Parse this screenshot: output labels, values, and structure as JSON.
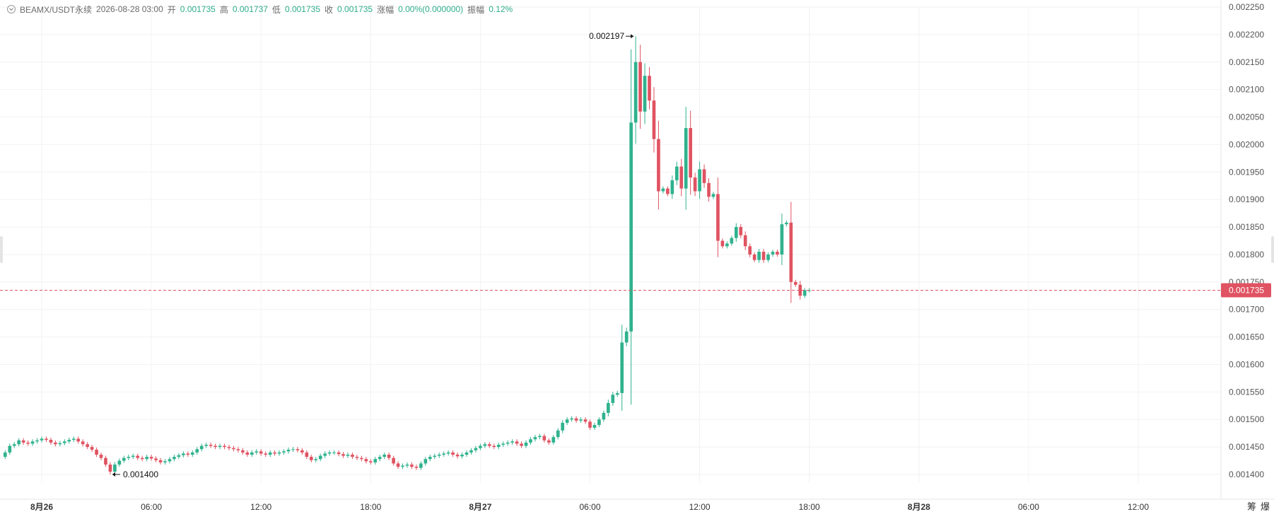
{
  "header": {
    "symbol": "BEAMX/USDT永续",
    "datetime": "2026-08-28 03:00",
    "open_label": "开",
    "open": "0.001735",
    "high_label": "高",
    "high": "0.001737",
    "low_label": "低",
    "low": "0.001735",
    "close_label": "收",
    "close": "0.001735",
    "change_label": "涨幅",
    "change": "0.00%(0.000000)",
    "amplitude_label": "振幅",
    "amplitude": "0.12%"
  },
  "corner": {
    "btn1": "筹",
    "btn2": "爆"
  },
  "colors": {
    "up": "#2fb28d",
    "down": "#e05362",
    "grid": "#f2f2f2",
    "axis_text": "#555555",
    "price_tag": "#e05362"
  },
  "chart_data": {
    "type": "candlestick",
    "title": "",
    "y_range": [
      0.00137,
      0.002255
    ],
    "y_ticks": [
      "0.002250",
      "0.002200",
      "0.002150",
      "0.002100",
      "0.002050",
      "0.002000",
      "0.001950",
      "0.001900",
      "0.001850",
      "0.001800",
      "0.001750",
      "0.001700",
      "0.001650",
      "0.001600",
      "0.001550",
      "0.001500",
      "0.001450",
      "0.001400"
    ],
    "x_ticks": [
      {
        "label": "8月26",
        "t": 0,
        "bold": true
      },
      {
        "label": "06:00",
        "t": 6,
        "bold": false
      },
      {
        "label": "12:00",
        "t": 12,
        "bold": false
      },
      {
        "label": "18:00",
        "t": 18,
        "bold": false
      },
      {
        "label": "8月27",
        "t": 24,
        "bold": true
      },
      {
        "label": "06:00",
        "t": 30,
        "bold": false
      },
      {
        "label": "12:00",
        "t": 36,
        "bold": false
      },
      {
        "label": "18:00",
        "t": 42,
        "bold": false
      },
      {
        "label": "8月28",
        "t": 48,
        "bold": true
      },
      {
        "label": "06:00",
        "t": 54,
        "bold": false
      },
      {
        "label": "12:00",
        "t": 60,
        "bold": false
      }
    ],
    "last_price": "0.001735",
    "last_price_value": 0.001735,
    "annotations": [
      {
        "text": "0.002197",
        "value": 0.002197,
        "side": "left"
      },
      {
        "text": "0.001400",
        "value": 0.0014,
        "side": "right"
      }
    ],
    "candle_interval_hours": 0.25,
    "first_candle_t": -2.0,
    "close_path": [
      0.00144,
      0.001452,
      0.001455,
      0.001462,
      0.001458,
      0.001456,
      0.00146,
      0.001462,
      0.001465,
      0.001463,
      0.001458,
      0.001455,
      0.001457,
      0.00146,
      0.001463,
      0.001465,
      0.00146,
      0.001455,
      0.00145,
      0.001445,
      0.001436,
      0.00143,
      0.001418,
      0.001405,
      0.001418,
      0.001425,
      0.00143,
      0.001432,
      0.001434,
      0.00143,
      0.001428,
      0.001432,
      0.001429,
      0.001426,
      0.001422,
      0.001424,
      0.001428,
      0.001432,
      0.001435,
      0.001438,
      0.001436,
      0.00144,
      0.001446,
      0.001452,
      0.001454,
      0.001452,
      0.00145,
      0.001452,
      0.00145,
      0.001448,
      0.001446,
      0.001444,
      0.00144,
      0.001436,
      0.00144,
      0.001442,
      0.001438,
      0.001436,
      0.00144,
      0.001438,
      0.00144,
      0.001442,
      0.001445,
      0.001446,
      0.001444,
      0.00144,
      0.001432,
      0.001426,
      0.001428,
      0.001434,
      0.001438,
      0.00144,
      0.00144,
      0.001437,
      0.001434,
      0.001436,
      0.001432,
      0.00143,
      0.001428,
      0.001424,
      0.001422,
      0.001428,
      0.001432,
      0.001436,
      0.00143,
      0.00142,
      0.001414,
      0.001416,
      0.001418,
      0.001414,
      0.001412,
      0.00142,
      0.001428,
      0.001432,
      0.001434,
      0.001436,
      0.001438,
      0.00144,
      0.001436,
      0.001433,
      0.001436,
      0.00144,
      0.001444,
      0.001448,
      0.001452,
      0.001455,
      0.001452,
      0.00145,
      0.001454,
      0.001456,
      0.001458,
      0.00146,
      0.001456,
      0.001452,
      0.001458,
      0.001464,
      0.001468,
      0.00147,
      0.001462,
      0.001458,
      0.001468,
      0.00148,
      0.001494,
      0.0015,
      0.001502,
      0.001498,
      0.0015,
      0.001496,
      0.001485,
      0.00149,
      0.0015,
      0.001512,
      0.00153,
      0.001545,
      0.001548,
      0.00164,
      0.00166,
      0.00204,
      0.00215,
      0.00206,
      0.002125,
      0.00208,
      0.00201,
      0.001915,
      0.00192,
      0.00191,
      0.001935,
      0.00196,
      0.00192,
      0.00203,
      0.00194,
      0.001915,
      0.001955,
      0.00193,
      0.001905,
      0.00191,
      0.001825,
      0.001815,
      0.00182,
      0.00183,
      0.00185,
      0.001835,
      0.001815,
      0.0018,
      0.00179,
      0.001805,
      0.00179,
      0.0018,
      0.001805,
      0.0018,
      0.001855,
      0.001858,
      0.00175,
      0.001745,
      0.001725,
      0.001735,
      0.001735
    ]
  }
}
